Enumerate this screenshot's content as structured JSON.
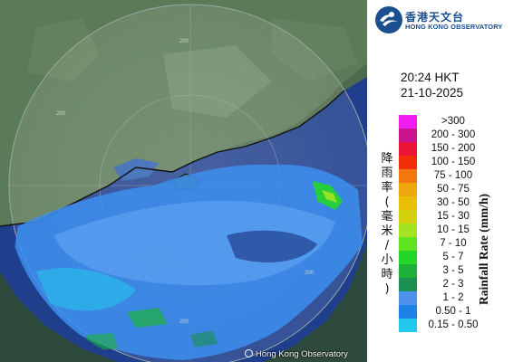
{
  "header": {
    "logo_zh": "香港天文台",
    "logo_en": "HONG KONG OBSERVATORY"
  },
  "timestamp": {
    "time": "20:24 HKT",
    "date": "21-10-2025"
  },
  "legend": {
    "axis_label_zh": "降雨率(毫米/小時)",
    "axis_label_en": "Rainfall Rate (mm/h)",
    "items": [
      {
        "label": ">300",
        "color": "#f01cf0"
      },
      {
        "label": "200 - 300",
        "color": "#c8128e"
      },
      {
        "label": "150 - 200",
        "color": "#ea1437"
      },
      {
        "label": "100 - 150",
        "color": "#f02e07"
      },
      {
        "label": "75 - 100",
        "color": "#f1780f"
      },
      {
        "label": "50 - 75",
        "color": "#efa70e"
      },
      {
        "label": "30 - 50",
        "color": "#e9bf08"
      },
      {
        "label": "15 - 30",
        "color": "#d4d20e"
      },
      {
        "label": "10 - 15",
        "color": "#a5e222"
      },
      {
        "label": "7 - 10",
        "color": "#60e420"
      },
      {
        "label": "5 - 7",
        "color": "#23d629"
      },
      {
        "label": "3 - 5",
        "color": "#1db13a"
      },
      {
        "label": "2 - 3",
        "color": "#1a8f50"
      },
      {
        "label": "1 - 2",
        "color": "#4f92ee"
      },
      {
        "label": "0.50 - 1",
        "color": "#1f82e8"
      },
      {
        "label": "0.15 - 0.50",
        "color": "#22c8ee"
      }
    ]
  },
  "map": {
    "range_labels": [
      "200",
      "200",
      "200",
      "200"
    ],
    "copyright": "Hong Kong Observatory",
    "colors": {
      "land": "#4f6a52",
      "sea": "#203f8e",
      "outside_range": "#2e4a3c",
      "rain_light": "#3d8ff0",
      "rain_medium": "#22c8ee",
      "rain_green": "#23d629"
    }
  }
}
